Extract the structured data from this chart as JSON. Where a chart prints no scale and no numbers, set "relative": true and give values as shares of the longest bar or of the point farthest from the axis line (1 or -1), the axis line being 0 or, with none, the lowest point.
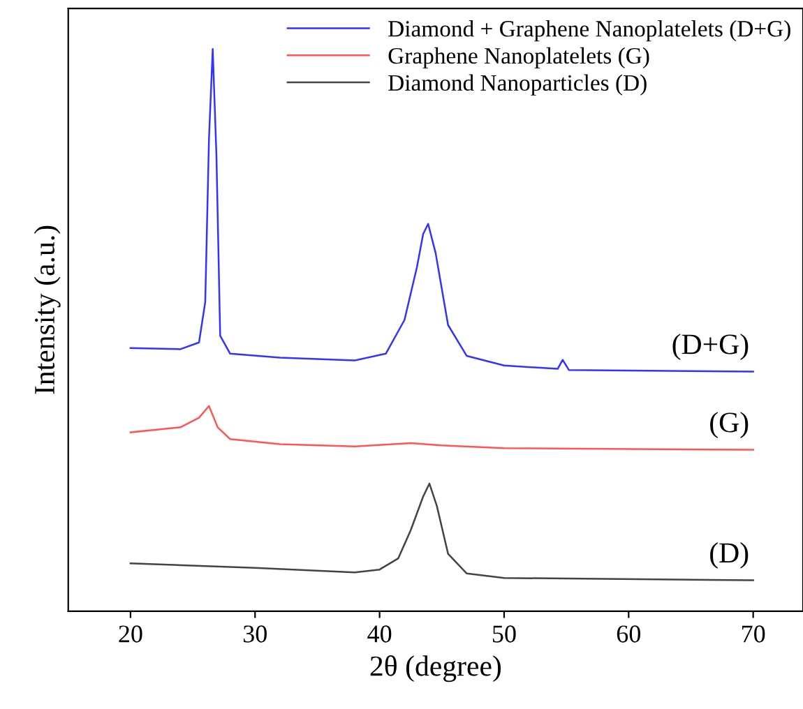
{
  "chart_data": {
    "type": "line",
    "relative": true,
    "xlabel": "2θ (degree)",
    "ylabel": "Intensity (a.u.)",
    "xlim": [
      15,
      74
    ],
    "xticks": [
      20,
      30,
      40,
      50,
      60,
      70
    ],
    "legend": "top right",
    "grid": false,
    "marker": "none",
    "line_style": "solid",
    "series": [
      {
        "name": "Diamond + Graphene Nanoplatelets (D+G)",
        "color": "#3333ff",
        "x": [
          20,
          24,
          25.5,
          26,
          26.3,
          26.6,
          26.9,
          27.2,
          28,
          32,
          38,
          40.5,
          42,
          43,
          43.5,
          43.9,
          44.5,
          45.5,
          47,
          50,
          54.3,
          54.7,
          55.2,
          60,
          70
        ],
        "values": [
          0.468,
          0.466,
          0.478,
          0.55,
          0.84,
          1.0,
          0.81,
          0.49,
          0.458,
          0.451,
          0.446,
          0.458,
          0.518,
          0.612,
          0.671,
          0.689,
          0.637,
          0.509,
          0.454,
          0.437,
          0.431,
          0.447,
          0.429,
          0.428,
          0.426
        ]
      },
      {
        "name": "Graphene Nanoplatelets (G)",
        "color": "#ff5555",
        "x": [
          20,
          24,
          25.5,
          26.3,
          27,
          28,
          32,
          38,
          42.5,
          45,
          50,
          70
        ],
        "values": [
          0.318,
          0.327,
          0.344,
          0.365,
          0.327,
          0.306,
          0.297,
          0.293,
          0.299,
          0.295,
          0.29,
          0.287
        ]
      },
      {
        "name": "Diamond Nanoparticles (D)",
        "color": "#444444",
        "x": [
          20,
          30,
          38,
          40,
          41.5,
          42.5,
          43.5,
          44,
          44.6,
          45.5,
          47,
          50,
          70
        ],
        "values": [
          0.085,
          0.077,
          0.069,
          0.074,
          0.094,
          0.144,
          0.204,
          0.227,
          0.187,
          0.102,
          0.067,
          0.059,
          0.055
        ]
      }
    ],
    "annotations": [
      "(D+G)",
      "(G)",
      "(D)"
    ]
  }
}
